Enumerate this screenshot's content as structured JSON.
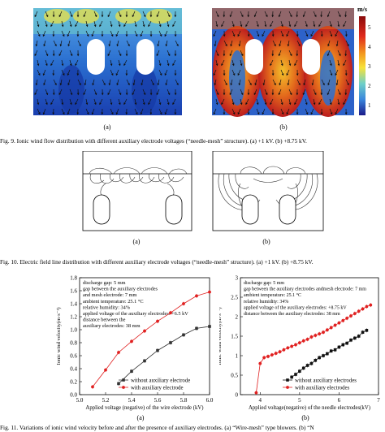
{
  "fig9": {
    "sub_a": "(a)",
    "sub_b": "(b)",
    "colorbar": {
      "unit": "m/s",
      "ticks": [
        "5",
        "4",
        "3",
        "2",
        "1"
      ]
    },
    "caption": "Fig. 9.   Ionic wind flow distribution with different auxiliary electrode voltages (“needle-mesh” structure). (a) +1 kV. (b) +8.75 kV."
  },
  "fig10": {
    "sub_a": "(a)",
    "sub_b": "(b)",
    "caption": "Fig. 10.   Electric field line distribution with different auxiliary electrode voltages (“needle-mesh” structure). (a) +1 kV. (b) +8.75 kV."
  },
  "fig11": {
    "sub_a": "(a)",
    "sub_b": "(b)",
    "caption": "Fig. 11.   Variations of ionic wind velocity before and after the presence of auxiliary electrodes. (a) “Wire-mesh” type blowers. (b) “N"
  },
  "chart_data": [
    {
      "type": "line",
      "xlabel": "Applied voltage (negative) of the wire electrode (kV)",
      "ylabel": "Ionic wind velocity(m·s⁻¹)",
      "xlim": [
        5.0,
        6.0
      ],
      "ylim": [
        0.0,
        1.8
      ],
      "xticks": [
        "5.0",
        "5.2",
        "5.4",
        "5.6",
        "5.8",
        "6.0"
      ],
      "yticks": [
        "0.0",
        "0.2",
        "0.4",
        "0.6",
        "0.8",
        "1.0",
        "1.2",
        "1.4",
        "1.6",
        "1.8"
      ],
      "annotation": [
        "discharge gap: 5 mm",
        "gap between the auxiliary electrodes",
        "and mesh electrode: 7 mm",
        "ambient temperature: 25.1 °C",
        "relative humidity: 34%",
        "applied voltage of the auxiliary electrodes: +6.5 kV",
        "distance between the",
        "auxiliary electrodes: 38 mm"
      ],
      "legend_position": "bottom-right",
      "series": [
        {
          "name": "without auxiliary electrode",
          "color": "#333333",
          "marker": "square",
          "x": [
            5.3,
            5.4,
            5.5,
            5.6,
            5.7,
            5.8,
            5.9,
            6.0
          ],
          "y": [
            0.17,
            0.36,
            0.52,
            0.68,
            0.8,
            0.92,
            1.02,
            1.05
          ]
        },
        {
          "name": "with auxiliary electrode",
          "color": "#e02020",
          "marker": "circle",
          "x": [
            5.1,
            5.2,
            5.3,
            5.4,
            5.5,
            5.6,
            5.7,
            5.8,
            5.9,
            6.0
          ],
          "y": [
            0.12,
            0.38,
            0.65,
            0.82,
            0.98,
            1.13,
            1.26,
            1.4,
            1.52,
            1.58
          ]
        }
      ]
    },
    {
      "type": "line",
      "xlabel": "Applied voltage(negative) of the needle electrodes(kV)",
      "ylabel": "Ionic wind velocity(m·s⁻¹)",
      "xlim": [
        3.5,
        7.0
      ],
      "ylim": [
        0.0,
        3.0
      ],
      "xticks": [
        "4",
        "5",
        "6",
        "7"
      ],
      "yticks": [
        "0",
        "0.5",
        "1",
        "1.5",
        "2",
        "2.5",
        "3"
      ],
      "annotation": [
        "discharge gap: 5 mm",
        "gap between the auxiliary electrodes andmesh electrode: 7 mm",
        "ambient temperature: 25.1 °C",
        "relative humidity: 34%",
        "applied voltage of the auxiliary electrodes: +8.75 kV",
        "distance between the auxiliary electrodes: 38 mm"
      ],
      "legend_position": "bottom-right",
      "series": [
        {
          "name": "without auxiliary electrodes",
          "color": "#111111",
          "marker": "square",
          "x": [
            4.8,
            4.9,
            5.0,
            5.1,
            5.2,
            5.3,
            5.4,
            5.5,
            5.6,
            5.7,
            5.8,
            5.9,
            6.0,
            6.1,
            6.2,
            6.3,
            6.4,
            6.5,
            6.6,
            6.7
          ],
          "y": [
            0.45,
            0.52,
            0.6,
            0.68,
            0.75,
            0.8,
            0.88,
            0.95,
            1.0,
            1.05,
            1.12,
            1.15,
            1.22,
            1.28,
            1.32,
            1.4,
            1.45,
            1.5,
            1.6,
            1.65
          ]
        },
        {
          "name": "with auxiliary electrodes",
          "color": "#e02020",
          "marker": "circle",
          "x": [
            3.9,
            4.0,
            4.1,
            4.2,
            4.3,
            4.4,
            4.5,
            4.6,
            4.7,
            4.8,
            4.9,
            5.0,
            5.1,
            5.2,
            5.3,
            5.4,
            5.5,
            5.6,
            5.7,
            5.8,
            5.9,
            6.0,
            6.1,
            6.2,
            6.3,
            6.4,
            6.5,
            6.6,
            6.7,
            6.8
          ],
          "y": [
            0.05,
            0.8,
            0.95,
            0.98,
            1.02,
            1.06,
            1.1,
            1.15,
            1.2,
            1.24,
            1.28,
            1.33,
            1.38,
            1.42,
            1.48,
            1.52,
            1.56,
            1.6,
            1.66,
            1.72,
            1.78,
            1.84,
            1.9,
            1.96,
            2.02,
            2.08,
            2.14,
            2.2,
            2.26,
            2.3
          ]
        }
      ]
    }
  ]
}
